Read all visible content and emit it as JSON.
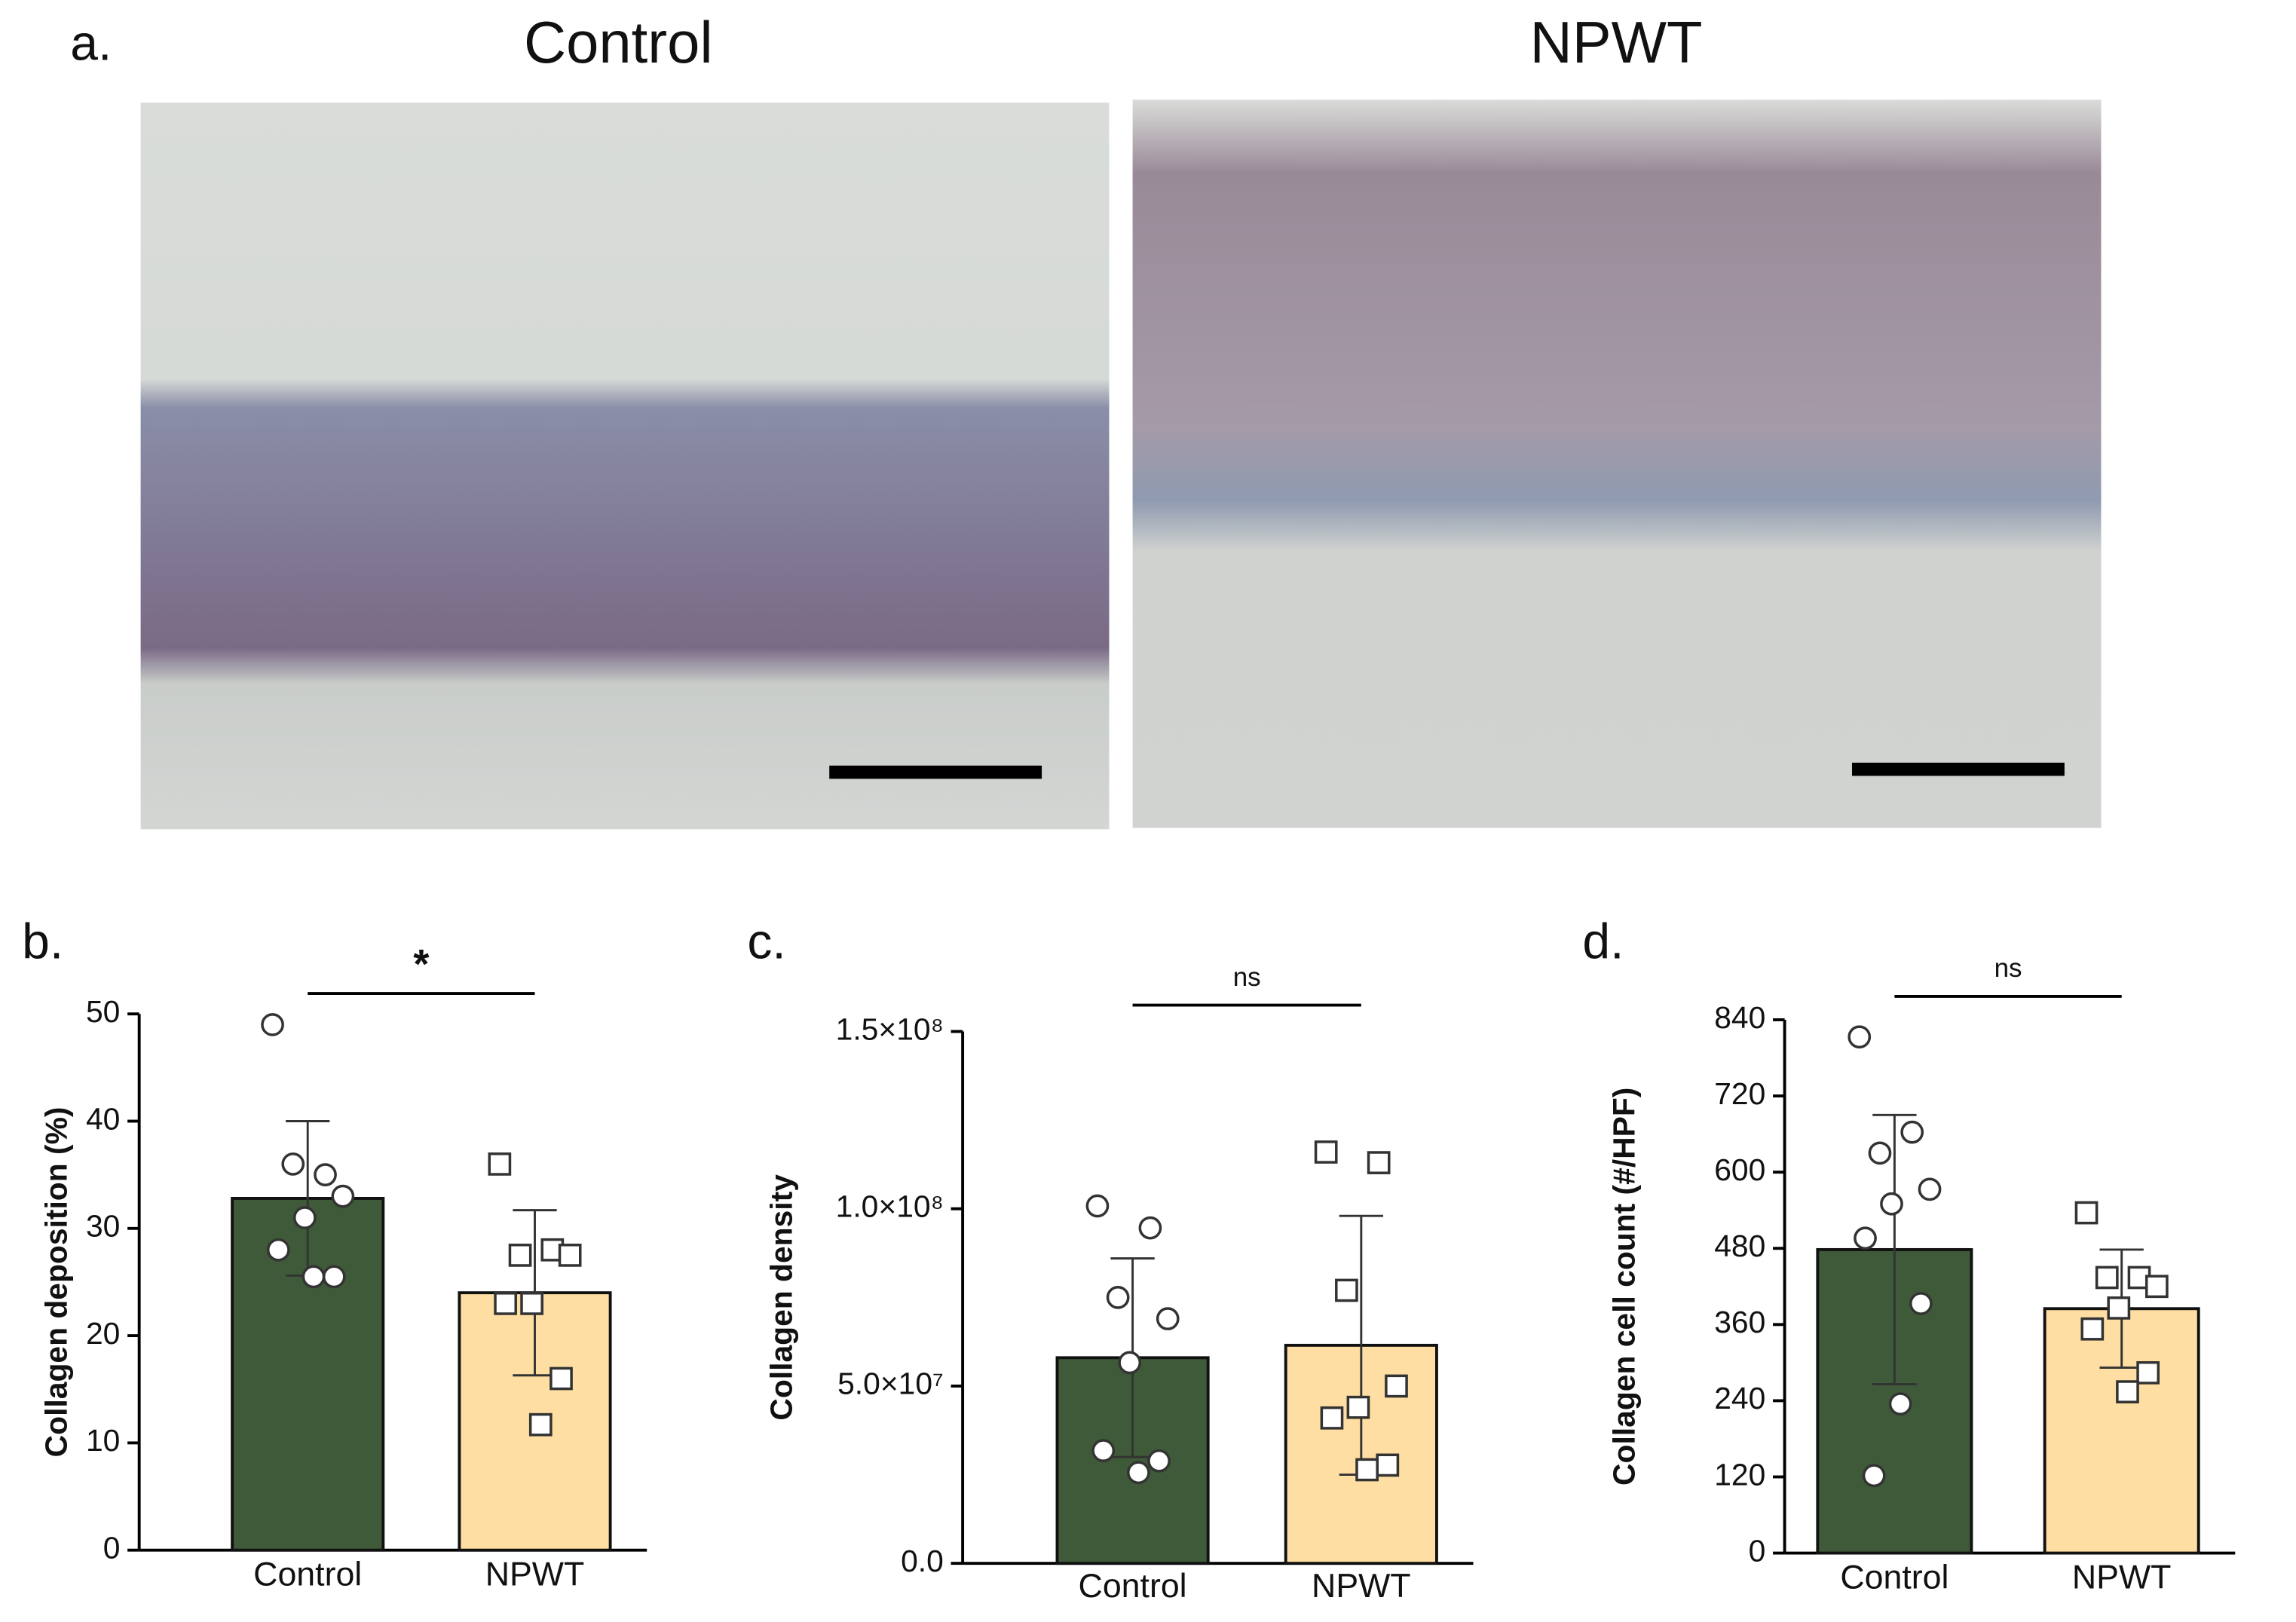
{
  "panel_a": {
    "label": "a.",
    "left_title": "Control",
    "right_title": "NPWT"
  },
  "chart_data": [
    {
      "type": "bar",
      "panel_label": "b.",
      "y_label": "Collagen deposition (%)",
      "categories": [
        "Control",
        "NPWT"
      ],
      "colors": [
        "#3f5a38",
        "#fedea2"
      ],
      "markers": [
        "circle",
        "square"
      ],
      "values": [
        32.8,
        24
      ],
      "errors": [
        7.2,
        7.7
      ],
      "points": [
        [
          49,
          35,
          36,
          33,
          31,
          28,
          25.5,
          25.5
        ],
        [
          36,
          28,
          27.5,
          27.5,
          23,
          23,
          16,
          11.7
        ]
      ],
      "ylim": [
        0,
        50
      ],
      "yticks": [
        0,
        10,
        20,
        30,
        40,
        50
      ],
      "significance": "*"
    },
    {
      "type": "bar",
      "panel_label": "c.",
      "y_label": "Collagen density",
      "categories": [
        "Control",
        "NPWT"
      ],
      "colors": [
        "#3f5a38",
        "#fedea2"
      ],
      "markers": [
        "circle",
        "square"
      ],
      "values": [
        58000000,
        61500000
      ],
      "errors": [
        28000000,
        36500000
      ],
      "points": [
        [
          100800000,
          94600000,
          75000000,
          69000000,
          56600000,
          31800000,
          28900000,
          25600000
        ],
        [
          116000000,
          113000000,
          77000000,
          50000000,
          44000000,
          41000000,
          27700000,
          26400000
        ]
      ],
      "ylim": [
        0,
        150000000
      ],
      "yticks": [
        {
          "value": 0,
          "label": "0.0"
        },
        {
          "value": 50000000,
          "label": "5.0×10⁷"
        },
        {
          "value": 100000000,
          "label": "1.0×10⁸"
        },
        {
          "value": 150000000,
          "label": "1.5×10⁸"
        }
      ],
      "significance": "ns"
    },
    {
      "type": "bar",
      "panel_label": "d.",
      "y_label": "Collagen cell count (#/HPF)",
      "categories": [
        "Control",
        "NPWT"
      ],
      "colors": [
        "#3f5a38",
        "#fedea2"
      ],
      "markers": [
        "circle",
        "square"
      ],
      "values": [
        478,
        385
      ],
      "errors": [
        212,
        93
      ],
      "points": [
        [
          813,
          663,
          630,
          573,
          550,
          496,
          393,
          235,
          122
        ],
        [
          536,
          434,
          434,
          420,
          386,
          353,
          284,
          254
        ]
      ],
      "ylim": [
        0,
        840
      ],
      "yticks": [
        0,
        120,
        240,
        360,
        480,
        600,
        720,
        840
      ],
      "significance": "ns"
    }
  ]
}
